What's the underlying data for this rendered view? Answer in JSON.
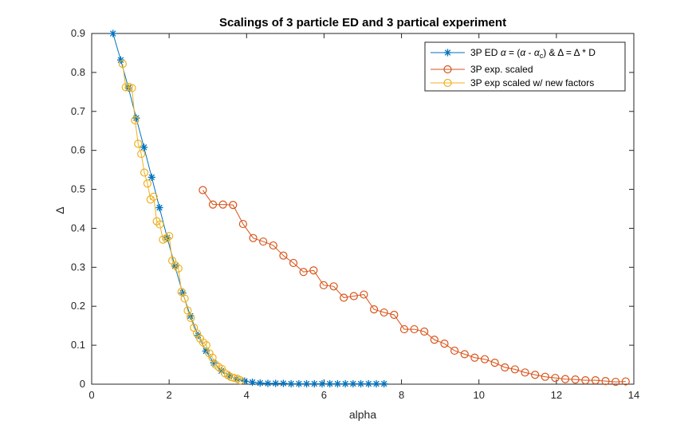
{
  "chart_data": {
    "type": "line",
    "title": "Scalings of 3 particle ED and 3 partical experiment",
    "xlabel": "alpha",
    "ylabel": "Δ",
    "xlim": [
      0,
      14
    ],
    "ylim": [
      0,
      0.9
    ],
    "xticks": [
      0,
      2,
      4,
      6,
      8,
      10,
      12,
      14
    ],
    "yticks": [
      0,
      0.1,
      0.2,
      0.3,
      0.4,
      0.5,
      0.6,
      0.7,
      0.8,
      0.9
    ],
    "xtick_labels": [
      "0",
      "2",
      "4",
      "6",
      "8",
      "10",
      "12",
      "14"
    ],
    "ytick_labels": [
      "0",
      "0.1",
      "0.2",
      "0.3",
      "0.4",
      "0.5",
      "0.6",
      "0.7",
      "0.8",
      "0.9"
    ],
    "grid": false,
    "legend_position": "top-right",
    "series": [
      {
        "name": "3P ED α = (α - α_c) & Δ = Δ * D",
        "color": "#0072BD",
        "marker": "asterisk",
        "x": [
          0.55,
          0.75,
          0.95,
          1.15,
          1.35,
          1.55,
          1.75,
          1.95,
          2.15,
          2.35,
          2.55,
          2.75,
          2.95,
          3.15,
          3.35,
          3.55,
          3.75,
          3.95,
          4.15,
          4.35,
          4.55,
          4.75,
          4.95,
          5.15,
          5.35,
          5.55,
          5.75,
          5.95,
          6.15,
          6.35,
          6.55,
          6.75,
          6.95,
          7.15,
          7.35,
          7.55
        ],
        "y": [
          0.9,
          0.832,
          0.76,
          0.683,
          0.608,
          0.531,
          0.453,
          0.376,
          0.303,
          0.234,
          0.175,
          0.125,
          0.085,
          0.055,
          0.034,
          0.021,
          0.013,
          0.008,
          0.005,
          0.003,
          0.002,
          0.002,
          0.002,
          0.001,
          0.001,
          0.001,
          0.001,
          0.001,
          0.001,
          0.001,
          0.001,
          0.001,
          0.001,
          0.001,
          0.001,
          0.001
        ]
      },
      {
        "name": "3P exp. scaled",
        "color": "#D95319",
        "marker": "circle",
        "x": [
          2.87,
          3.13,
          3.39,
          3.65,
          3.91,
          4.17,
          4.43,
          4.69,
          4.95,
          5.21,
          5.47,
          5.73,
          5.99,
          6.25,
          6.51,
          6.77,
          7.03,
          7.29,
          7.55,
          7.81,
          8.07,
          8.33,
          8.59,
          8.85,
          9.11,
          9.37,
          9.63,
          9.89,
          10.15,
          10.41,
          10.67,
          10.93,
          11.19,
          11.45,
          11.71,
          11.97,
          12.23,
          12.49,
          12.75,
          13.01,
          13.27,
          13.53,
          13.79
        ],
        "y": [
          0.498,
          0.461,
          0.461,
          0.46,
          0.411,
          0.375,
          0.366,
          0.356,
          0.33,
          0.311,
          0.288,
          0.292,
          0.254,
          0.251,
          0.222,
          0.226,
          0.23,
          0.192,
          0.184,
          0.178,
          0.141,
          0.141,
          0.135,
          0.114,
          0.104,
          0.086,
          0.077,
          0.068,
          0.064,
          0.055,
          0.043,
          0.038,
          0.03,
          0.024,
          0.019,
          0.016,
          0.013,
          0.012,
          0.01,
          0.01,
          0.008,
          0.006,
          0.007
        ]
      },
      {
        "name": "3P exp scaled w/ new factors",
        "color": "#EDB120",
        "marker": "circle",
        "x": [
          0.8,
          0.88,
          0.96,
          1.04,
          1.12,
          1.2,
          1.28,
          1.36,
          1.44,
          1.52,
          1.6,
          1.68,
          1.76,
          1.84,
          1.92,
          2.0,
          2.08,
          2.16,
          2.24,
          2.32,
          2.4,
          2.48,
          2.56,
          2.64,
          2.72,
          2.8,
          2.88,
          2.96,
          3.04,
          3.12,
          3.2,
          3.28,
          3.36,
          3.44,
          3.52,
          3.6,
          3.68,
          3.76,
          3.84
        ],
        "y": [
          0.822,
          0.762,
          0.763,
          0.76,
          0.677,
          0.617,
          0.591,
          0.543,
          0.515,
          0.474,
          0.481,
          0.418,
          0.41,
          0.371,
          0.374,
          0.38,
          0.317,
          0.305,
          0.297,
          0.237,
          0.22,
          0.189,
          0.17,
          0.145,
          0.13,
          0.117,
          0.107,
          0.1,
          0.079,
          0.068,
          0.05,
          0.044,
          0.039,
          0.028,
          0.023,
          0.018,
          0.016,
          0.014,
          0.01
        ]
      }
    ]
  }
}
